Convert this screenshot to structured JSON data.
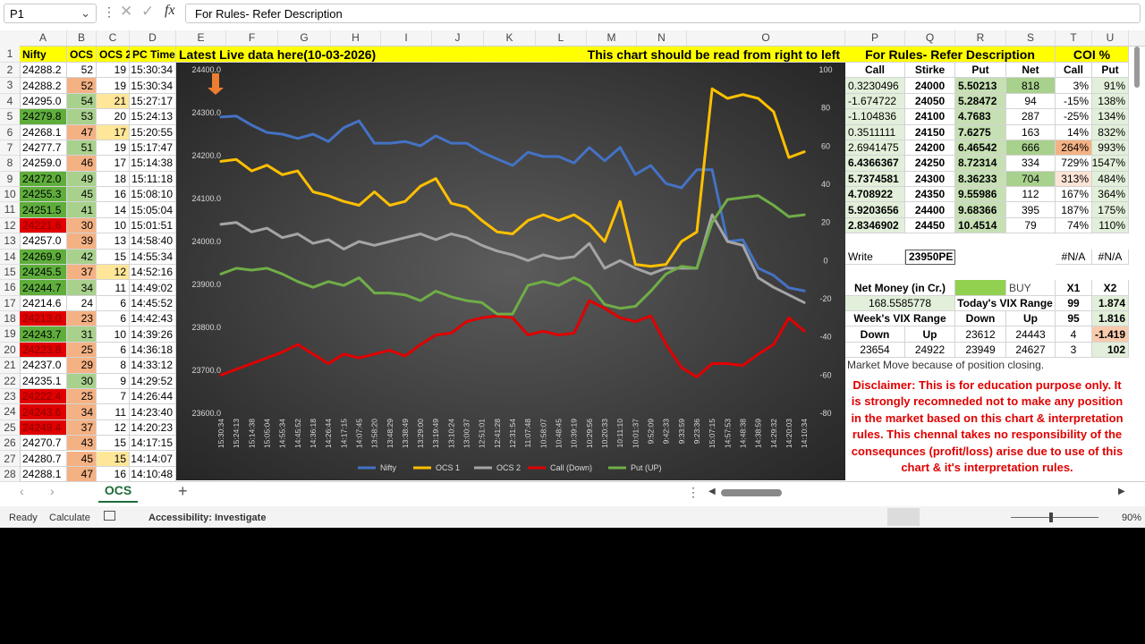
{
  "formula_bar": {
    "name_box": "P1",
    "formula": "For Rules- Refer Description"
  },
  "columns": [
    "A",
    "B",
    "C",
    "D",
    "E",
    "F",
    "G",
    "H",
    "I",
    "J",
    "K",
    "L",
    "M",
    "N",
    "O",
    "P",
    "Q",
    "R",
    "S",
    "T",
    "U"
  ],
  "row_numbers": [
    1,
    2,
    3,
    4,
    5,
    6,
    7,
    8,
    9,
    10,
    11,
    12,
    13,
    14,
    15,
    16,
    17,
    18,
    19,
    20,
    21,
    22,
    23,
    24,
    25,
    26,
    27,
    28
  ],
  "left_table": {
    "headers": [
      "Nifty",
      "OCS 1",
      "OCS 2",
      "PC Time"
    ],
    "rows": [
      [
        "24288.2",
        "52",
        "19",
        "15:30:34"
      ],
      [
        "24288.2",
        "52",
        "19",
        "15:30:34"
      ],
      [
        "24295.0",
        "54",
        "21",
        "15:27:17"
      ],
      [
        "24279.8",
        "53",
        "20",
        "15:24:13"
      ],
      [
        "24268.1",
        "47",
        "17",
        "15:20:55"
      ],
      [
        "24277.7",
        "51",
        "19",
        "15:17:47"
      ],
      [
        "24259.0",
        "46",
        "17",
        "15:14:38"
      ],
      [
        "24272.0",
        "49",
        "18",
        "15:11:18"
      ],
      [
        "24255.3",
        "45",
        "16",
        "15:08:10"
      ],
      [
        "24251.5",
        "41",
        "14",
        "15:05:04"
      ],
      [
        "24221.6",
        "30",
        "10",
        "15:01:51"
      ],
      [
        "24257.0",
        "39",
        "13",
        "14:58:40"
      ],
      [
        "24269.9",
        "42",
        "15",
        "14:55:34"
      ],
      [
        "24245.5",
        "37",
        "12",
        "14:52:16"
      ],
      [
        "24244.7",
        "34",
        "11",
        "14:49:02"
      ],
      [
        "24214.6",
        "24",
        "6",
        "14:45:52"
      ],
      [
        "24213.0",
        "23",
        "6",
        "14:42:43"
      ],
      [
        "24243.7",
        "31",
        "10",
        "14:39:26"
      ],
      [
        "24223.8",
        "25",
        "6",
        "14:36:18"
      ],
      [
        "24237.0",
        "29",
        "8",
        "14:33:12"
      ],
      [
        "24235.1",
        "30",
        "9",
        "14:29:52"
      ],
      [
        "24222.4",
        "25",
        "7",
        "14:26:44"
      ],
      [
        "24243.6",
        "34",
        "11",
        "14:23:40"
      ],
      [
        "24249.4",
        "37",
        "12",
        "14:20:23"
      ],
      [
        "24270.7",
        "43",
        "15",
        "14:17:15"
      ],
      [
        "24280.7",
        "45",
        "15",
        "14:14:07"
      ],
      [
        "24288.1",
        "47",
        "16",
        "14:10:48"
      ]
    ]
  },
  "banner": {
    "left": "Latest Live data here(10-03-2026)",
    "right": "This chart should be read from right to left"
  },
  "chart": {
    "type": "line",
    "categories": [
      "15:30:34",
      "15:24:13",
      "15:14:38",
      "15:05:04",
      "14:55:34",
      "14:45:52",
      "14:36:18",
      "14:26:44",
      "14:17:15",
      "14:07:45",
      "13:58:20",
      "13:48:29",
      "13:38:49",
      "13:29:00",
      "13:19:49",
      "13:10:24",
      "13:00:37",
      "12:51:01",
      "12:41:28",
      "12:31:54",
      "11:07:48",
      "10:58:07",
      "10:48:45",
      "10:39:19",
      "10:29:56",
      "10:20:33",
      "10:11:10",
      "10:01:37",
      "9:52:09",
      "9:42:33",
      "9:33:59",
      "9:23:36",
      "15:07:15",
      "14:57:53",
      "14:48:38",
      "14:38:59",
      "14:29:32",
      "14:20:03",
      "14:10:34"
    ],
    "series": [
      {
        "name": "Nifty",
        "color": "#4472c4",
        "values": [
          24290,
          24292,
          24271,
          24254,
          24250,
          24240,
          24250,
          24233,
          24265,
          24281,
          24229,
          24229,
          24233,
          24223,
          24246,
          24229,
          24229,
          24208,
          24192,
          24177,
          24208,
          24198,
          24198,
          24183,
          24219,
          24188,
          24219,
          24156,
          24177,
          24135,
          24125,
          24167,
          24167,
          24000,
          24004,
          23938,
          23921,
          23892,
          23885
        ]
      },
      {
        "name": "OCS 1",
        "color": "#ffc000",
        "axis": "y2",
        "values": [
          52,
          53,
          47,
          50,
          45,
          47,
          36,
          34,
          31,
          29,
          36,
          29,
          31,
          39,
          43,
          30,
          28,
          21,
          15,
          14,
          21,
          24,
          21,
          24,
          19,
          10,
          31,
          -2,
          -3,
          -2,
          10,
          15,
          90,
          85,
          87,
          85,
          78,
          54,
          57
        ]
      },
      {
        "name": "OCS 2",
        "color": "#a5a5a5",
        "axis": "y2",
        "values": [
          19,
          20,
          15,
          17,
          12,
          14,
          9,
          11,
          6,
          10,
          8,
          10,
          12,
          14,
          11,
          14,
          12,
          8,
          5,
          3,
          0,
          3,
          1,
          2,
          9,
          -4,
          0,
          -4,
          -7,
          -4,
          -4,
          -4,
          24,
          10,
          8,
          -9,
          -14,
          -18,
          -22
        ]
      },
      {
        "name": "Call (Down)",
        "color": "#e00000",
        "axis": "y2",
        "values": [
          -60,
          -57,
          -54,
          -51,
          -48,
          -44,
          -49,
          -54,
          -49,
          -51,
          -49,
          -47,
          -50,
          -44,
          -39,
          -38,
          -32,
          -30,
          -29,
          -30,
          -39,
          -37,
          -39,
          -38,
          -21,
          -25,
          -30,
          -32,
          -29,
          -44,
          -56,
          -61,
          -54,
          -54,
          -55,
          -49,
          -44,
          -30,
          -37
        ]
      },
      {
        "name": "Put (UP)",
        "color": "#70ad47",
        "axis": "y2",
        "values": [
          -7,
          -4,
          -5,
          -4,
          -7,
          -11,
          -14,
          -11,
          -13,
          -9,
          -17,
          -17,
          -18,
          -21,
          -16,
          -19,
          -21,
          -22,
          -28,
          -28,
          -13,
          -11,
          -13,
          -9,
          -13,
          -23,
          -25,
          -24,
          -16,
          -7,
          -3,
          -4,
          20,
          32,
          33,
          34,
          29,
          23,
          24
        ]
      }
    ],
    "ylim": [
      23600,
      24400
    ],
    "yticks": [
      {
        "value": 23600,
        "label": "23600.0"
      },
      {
        "value": 23700,
        "label": "23700.0"
      },
      {
        "value": 23800,
        "label": "23800.0"
      },
      {
        "value": 23900,
        "label": "23900.0"
      },
      {
        "value": 24000,
        "label": "24000.0"
      },
      {
        "value": 24100,
        "label": "24100.0"
      },
      {
        "value": 24200,
        "label": "24200.0"
      },
      {
        "value": 24300,
        "label": "24300.0"
      },
      {
        "value": 24400,
        "label": "24400.0"
      }
    ],
    "y2lim": [
      -80,
      100
    ],
    "y2ticks": [
      -80,
      -60,
      -40,
      -20,
      0,
      20,
      40,
      60,
      80,
      100
    ],
    "legend": "bottom"
  },
  "right_panel": {
    "title": "For Rules- Refer Description",
    "coi_title": "COI %",
    "headers": [
      "Call",
      "Stirke",
      "Put",
      "Net",
      "Call",
      "Put"
    ],
    "rows": [
      [
        "0.3230496",
        "24000",
        "5.50213",
        "818",
        "3%",
        "91%"
      ],
      [
        "-1.674722",
        "24050",
        "5.28472",
        "94",
        "-15%",
        "138%"
      ],
      [
        "-1.104836",
        "24100",
        "4.7683",
        "287",
        "-25%",
        "134%"
      ],
      [
        "0.3511111",
        "24150",
        "7.6275",
        "163",
        "14%",
        "832%"
      ],
      [
        "2.6941475",
        "24200",
        "6.46542",
        "666",
        "264%",
        "993%"
      ],
      [
        "6.4366367",
        "24250",
        "8.72314",
        "334",
        "729%",
        "1547%"
      ],
      [
        "5.7374581",
        "24300",
        "8.36233",
        "704",
        "313%",
        "484%"
      ],
      [
        "4.708922",
        "24350",
        "9.55986",
        "112",
        "167%",
        "364%"
      ],
      [
        "5.9203656",
        "24400",
        "9.68366",
        "395",
        "187%",
        "175%"
      ],
      [
        "2.8346902",
        "24450",
        "10.4514",
        "79",
        "74%",
        "110%"
      ]
    ],
    "write_row": [
      "Write",
      "23950PE",
      "#N/A",
      "#N/A"
    ],
    "lower_rows": [
      [
        "Net Money (in Cr.)",
        "BUY",
        "X1",
        "X2"
      ],
      [
        "168.5585778",
        "Today's VIX Range",
        "99",
        "1.874"
      ],
      [
        "Week's VIX Range",
        "Down",
        "Up",
        "95",
        "1.816"
      ],
      [
        "Down",
        "Up",
        "23612",
        "24443",
        "4",
        "-1.419"
      ],
      [
        "23654",
        "24922",
        "23949",
        "24627",
        "3",
        "102"
      ]
    ],
    "note": "Market Move because of position closing.",
    "disclaimer": "Disclaimer: This is for education purpose only.   It is strongly recomneded not to make any position in the market based on this chart & interpretation rules. This chennal takes no responsibility of the consequnces (profit/loss) arise due to use of this chart & it's interpretation rules."
  },
  "sheet_tab": "OCS",
  "status": {
    "ready": "Ready",
    "calculate": "Calculate",
    "accessibility": "Accessibility: Investigate",
    "zoom": "90%"
  }
}
